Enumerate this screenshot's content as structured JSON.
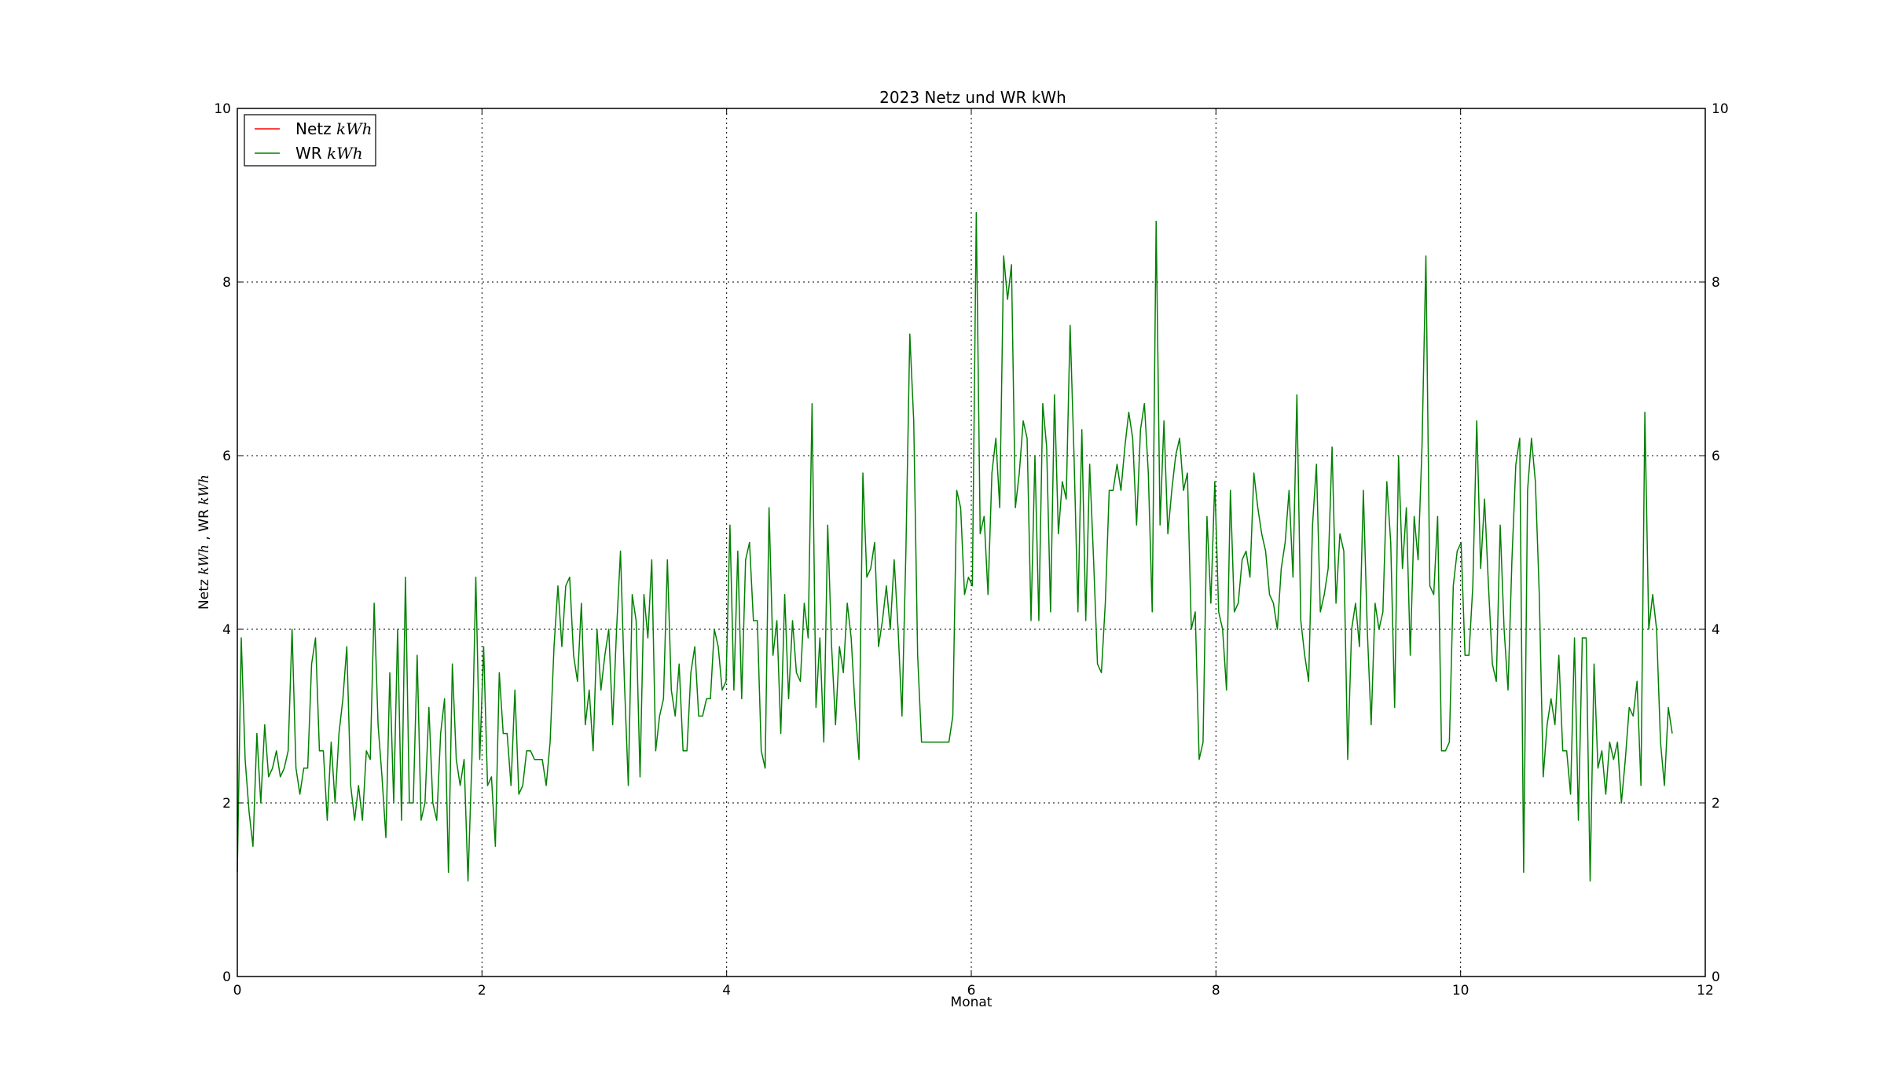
{
  "chart_data": {
    "type": "line",
    "title": "2023 Netz und WR kWh",
    "xlabel": "Monat",
    "ylabel": "Netz kWh , WR kWh",
    "ylabel_parts": {
      "netz": "Netz ",
      "sep": " , WR ",
      "unit": "kWh"
    },
    "xlim": [
      0,
      12
    ],
    "ylim": [
      0,
      10
    ],
    "xticks": [
      "0",
      "2",
      "4",
      "6",
      "8",
      "10",
      "12"
    ],
    "yticks": [
      "0",
      "2",
      "4",
      "6",
      "8",
      "10"
    ],
    "grid": true,
    "legend_position": "top-left",
    "legend": [
      {
        "name": "Netz",
        "unit": "kWh",
        "color": "#ff0000"
      },
      {
        "name": "WR",
        "unit": "kWh",
        "color": "#008000"
      }
    ],
    "series": [
      {
        "name": "Netz kWh",
        "color": "#ff0000",
        "x": [],
        "y": []
      },
      {
        "name": "WR kWh",
        "color": "#008000",
        "x_start": 0,
        "x_end": 11.73,
        "y": [
          1.2,
          3.9,
          2.5,
          1.9,
          1.5,
          2.8,
          2.0,
          2.9,
          2.3,
          2.4,
          2.6,
          2.3,
          2.4,
          2.6,
          4.0,
          2.4,
          2.1,
          2.4,
          2.4,
          3.6,
          3.9,
          2.6,
          2.6,
          1.8,
          2.7,
          2.0,
          2.8,
          3.2,
          3.8,
          2.2,
          1.8,
          2.2,
          1.8,
          2.6,
          2.5,
          4.3,
          2.9,
          2.3,
          1.6,
          3.5,
          2.0,
          4.0,
          1.8,
          4.6,
          2.0,
          2.0,
          3.7,
          1.8,
          2.0,
          3.1,
          2.0,
          1.8,
          2.8,
          3.2,
          1.2,
          3.6,
          2.5,
          2.2,
          2.5,
          1.1,
          2.5,
          4.6,
          2.5,
          3.8,
          2.2,
          2.3,
          1.5,
          3.5,
          2.8,
          2.8,
          2.2,
          3.3,
          2.1,
          2.2,
          2.6,
          2.6,
          2.5,
          2.5,
          2.5,
          2.2,
          2.7,
          3.8,
          4.5,
          3.8,
          4.5,
          4.6,
          3.7,
          3.4,
          4.3,
          2.9,
          3.3,
          2.6,
          4.0,
          3.3,
          3.7,
          4.0,
          2.9,
          4.0,
          4.9,
          3.4,
          2.2,
          4.4,
          4.1,
          2.3,
          4.4,
          3.9,
          4.8,
          2.6,
          3.0,
          3.2,
          4.8,
          3.3,
          3.0,
          3.6,
          2.6,
          2.6,
          3.5,
          3.8,
          3.0,
          3.0,
          3.2,
          3.2,
          4.0,
          3.8,
          3.3,
          3.4,
          5.2,
          3.3,
          4.9,
          3.2,
          4.8,
          5.0,
          4.1,
          4.1,
          2.6,
          2.4,
          5.4,
          3.7,
          4.1,
          2.8,
          4.4,
          3.2,
          4.1,
          3.5,
          3.4,
          4.3,
          3.9,
          6.6,
          3.1,
          3.9,
          2.7,
          5.2,
          3.8,
          2.9,
          3.8,
          3.5,
          4.3,
          3.9,
          3.1,
          2.5,
          5.8,
          4.6,
          4.7,
          5.0,
          3.8,
          4.1,
          4.5,
          4.0,
          4.8,
          4.0,
          3.0,
          4.9,
          7.4,
          6.4,
          3.7,
          2.7,
          2.7,
          2.7,
          2.7,
          2.7,
          2.7,
          2.7,
          2.7,
          3.0,
          5.6,
          5.4,
          4.4,
          4.6,
          4.5,
          8.8,
          5.1,
          5.3,
          4.4,
          5.8,
          6.2,
          5.4,
          8.3,
          7.8,
          8.2,
          5.4,
          5.8,
          6.4,
          6.2,
          4.1,
          6.0,
          4.1,
          6.6,
          6.1,
          4.2,
          6.7,
          5.1,
          5.7,
          5.5,
          7.5,
          6.0,
          4.2,
          6.3,
          4.1,
          5.9,
          4.8,
          3.6,
          3.5,
          4.3,
          5.6,
          5.6,
          5.9,
          5.6,
          6.1,
          6.5,
          6.2,
          5.2,
          6.3,
          6.6,
          5.8,
          4.2,
          8.7,
          5.2,
          6.4,
          5.1,
          5.6,
          6.0,
          6.2,
          5.6,
          5.8,
          4.0,
          4.2,
          2.5,
          2.7,
          5.3,
          4.3,
          5.7,
          4.2,
          4.0,
          3.3,
          5.6,
          4.2,
          4.3,
          4.8,
          4.9,
          4.6,
          5.8,
          5.4,
          5.1,
          4.9,
          4.4,
          4.3,
          4.0,
          4.7,
          5.0,
          5.6,
          4.6,
          6.7,
          4.1,
          3.7,
          3.4,
          5.2,
          5.9,
          4.2,
          4.4,
          4.7,
          6.1,
          4.3,
          5.1,
          4.9,
          2.5,
          4.0,
          4.3,
          3.8,
          5.6,
          4.0,
          2.9,
          4.3,
          4.0,
          4.2,
          5.7,
          5.0,
          3.1,
          6.0,
          4.7,
          5.4,
          3.7,
          5.3,
          4.8,
          6.1,
          8.3,
          4.5,
          4.4,
          5.3,
          2.6,
          2.6,
          2.7,
          4.5,
          4.9,
          5.0,
          3.7,
          3.7,
          4.5,
          6.4,
          4.7,
          5.5,
          4.5,
          3.6,
          3.4,
          5.2,
          4.0,
          3.3,
          4.8,
          5.9,
          6.2,
          1.2,
          5.6,
          6.2,
          5.7,
          4.4,
          2.3,
          2.9,
          3.2,
          2.9,
          3.7,
          2.6,
          2.6,
          2.1,
          3.9,
          1.8,
          3.9,
          3.9,
          1.1,
          3.6,
          2.4,
          2.6,
          2.1,
          2.7,
          2.5,
          2.7,
          2.0,
          2.5,
          3.1,
          3.0,
          3.4,
          2.2,
          6.5,
          4.0,
          4.4,
          4.0,
          2.7,
          2.2,
          3.1,
          2.8
        ]
      }
    ]
  }
}
